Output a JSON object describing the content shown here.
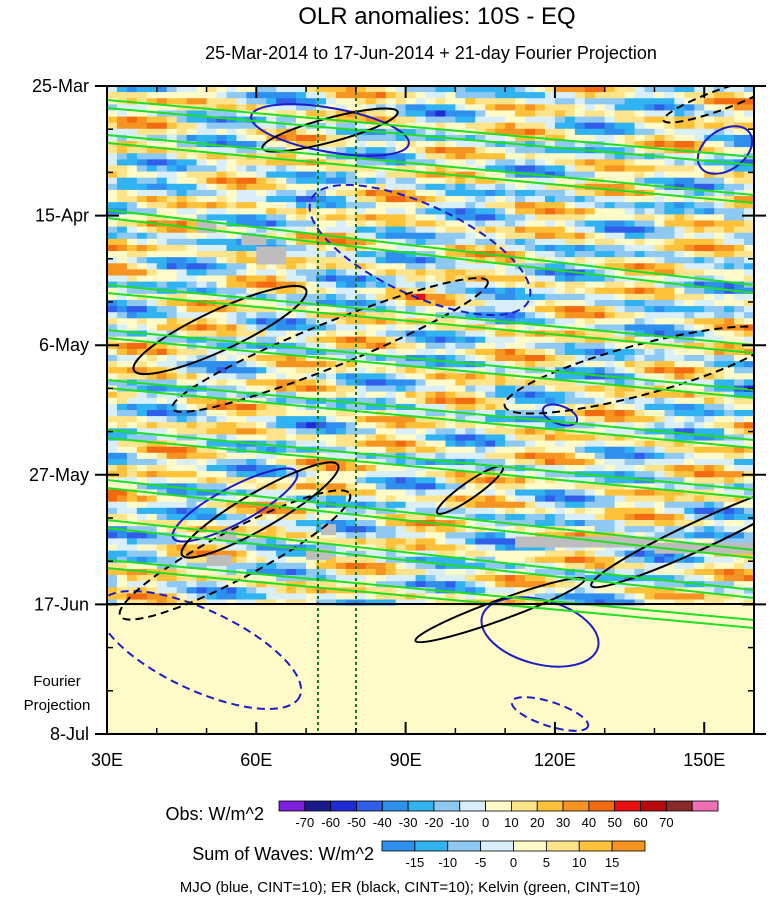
{
  "chart_data": {
    "type": "heatmap",
    "title": "OLR anomalies: 10S - EQ",
    "subtitle": "25-Mar-2014 to 17-Jun-2014 + 21-day Fourier Projection",
    "x_axis": {
      "range": [
        30,
        160
      ],
      "ticks": [
        30,
        60,
        90,
        120,
        150
      ],
      "tick_labels": [
        "30E",
        "60E",
        "90E",
        "120E",
        "150E"
      ],
      "minor_step": 10
    },
    "y_axis": {
      "reversed": true,
      "start": "2014-03-25",
      "end": "2014-07-08",
      "tick_labels": [
        "25-Mar",
        "15-Apr",
        "6-May",
        "27-May",
        "17-Jun",
        "8-Jul"
      ],
      "tick_dates": [
        "2014-03-25",
        "2014-04-15",
        "2014-05-06",
        "2014-05-27",
        "2014-06-17",
        "2014-07-08"
      ]
    },
    "observed_end": "2014-06-17",
    "projection_label": [
      "Fourier",
      "Projection"
    ],
    "reference_longitudes": [
      72.5,
      80
    ],
    "obs_colorbar": {
      "label": "Obs: W/m^2",
      "levels": [
        -70,
        -60,
        -50,
        -40,
        -30,
        -20,
        -10,
        0,
        10,
        20,
        30,
        40,
        50,
        60,
        70
      ],
      "colors": [
        "#7f1fe0",
        "#1a1a8c",
        "#1f2bd6",
        "#2f5ee8",
        "#2f8fef",
        "#31b3f2",
        "#8ec9f3",
        "#d8effa",
        "#fffbc8",
        "#fde48a",
        "#fdc13a",
        "#f59420",
        "#f26b10",
        "#e8110f",
        "#b80a0a",
        "#8a2a2a",
        "#f070b4"
      ]
    },
    "waves_colorbar": {
      "label": "Sum of Waves: W/m^2",
      "levels": [
        -15,
        -10,
        -5,
        0,
        5,
        10,
        15
      ],
      "colors": [
        "#2f8fef",
        "#31b3f2",
        "#8ec9f3",
        "#d8effa",
        "#fffbc8",
        "#fde48a",
        "#fdc13a",
        "#f59420"
      ]
    },
    "legend_note": "MJO (blue, CINT=10); ER (black, CINT=10); Kelvin (green, CINT=10)",
    "line_colors": {
      "mjo": "#1c1cc8",
      "er": "#000000",
      "kelvin": "#22dd22",
      "ref": "#1a7a1a"
    }
  }
}
